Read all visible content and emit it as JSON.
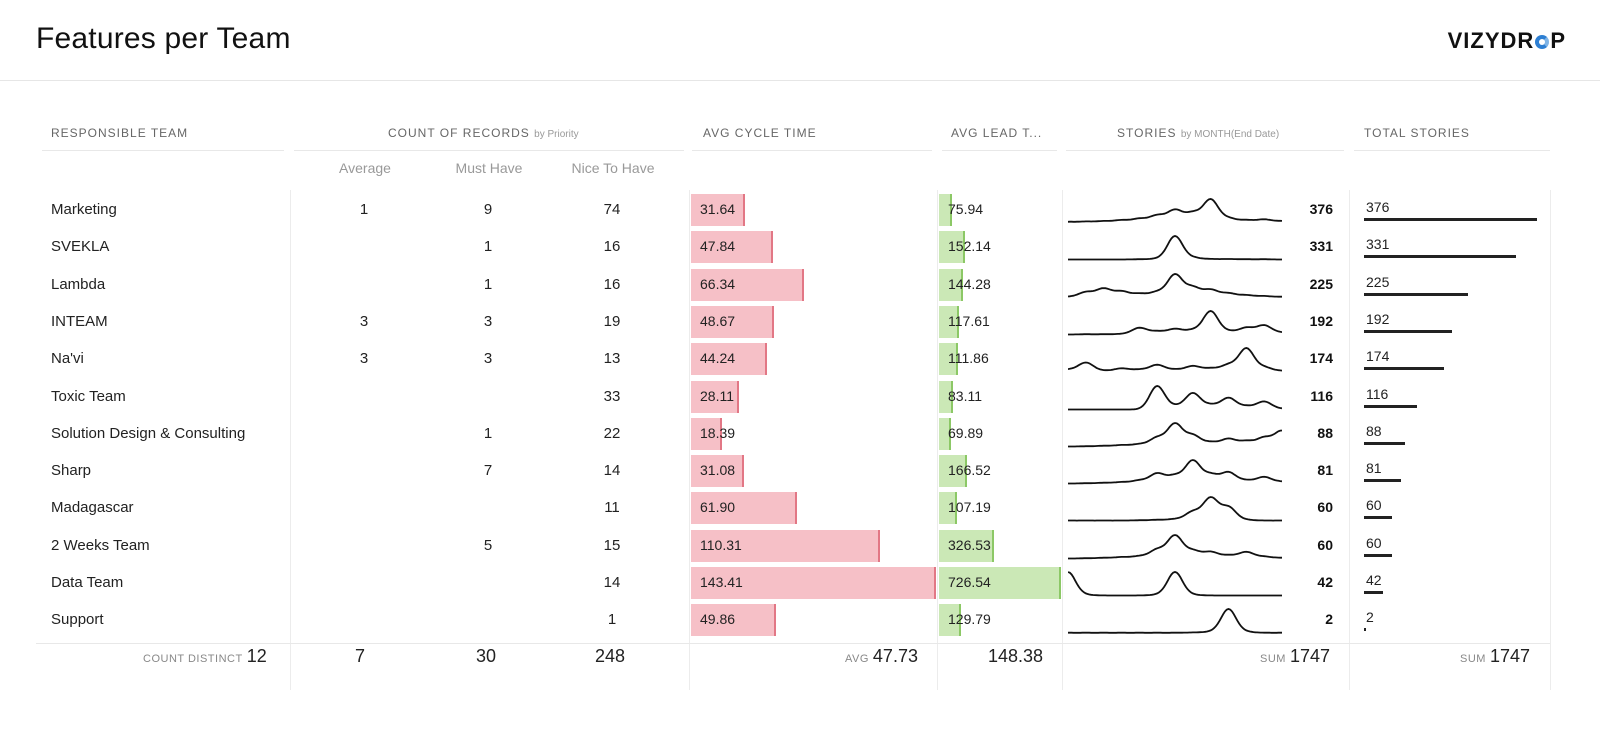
{
  "header": {
    "title": "Features per Team",
    "logo_prefix": "VIZYDR",
    "logo_suffix": "P"
  },
  "columns": {
    "team": "RESPONSIBLE TEAM",
    "count": "COUNT OF RECORDS",
    "count_sub": "by Priority",
    "cycle": "AVG CYCLE TIME",
    "lead": "AVG LEAD T...",
    "stories": "STORIES",
    "stories_sub": "by MONTH(End Date)",
    "total": "TOTAL STORIES"
  },
  "priorities": [
    "Average",
    "Must Have",
    "Nice To Have"
  ],
  "footer": {
    "team_label": "COUNT DISTINCT",
    "team_value": "12",
    "average": "7",
    "must_have": "30",
    "nice_to_have": "248",
    "cycle_label": "AVG",
    "cycle_value": "47.73",
    "lead_value": "148.38",
    "stories_label": "SUM",
    "stories_value": "1747",
    "total_label": "SUM",
    "total_value": "1747"
  },
  "chart_data": {
    "type": "table",
    "title": "Features per Team",
    "rows": [
      {
        "team": "Marketing",
        "average": "1",
        "must_have": "9",
        "nice_to_have": "74",
        "cycle": 31.64,
        "cycle_label": "31.64",
        "lead": 75.94,
        "lead_label": "75.94",
        "stories": 376,
        "stories_label": "376",
        "trend": [
          0.05,
          0.06,
          0.08,
          0.12,
          0.18,
          0.32,
          0.55,
          0.42,
          1.0,
          0.2,
          0.12,
          0.15,
          0.08
        ]
      },
      {
        "team": "SVEKLA",
        "average": "",
        "must_have": "1",
        "nice_to_have": "16",
        "cycle": 47.84,
        "cycle_label": "47.84",
        "lead": 152.14,
        "lead_label": "152.14",
        "stories": 331,
        "stories_label": "331",
        "trend": [
          0.02,
          0.02,
          0.02,
          0.02,
          0.03,
          0.05,
          1.0,
          0.1,
          0.04,
          0.04,
          0.03,
          0.03,
          0.02
        ]
      },
      {
        "team": "Lambda",
        "average": "",
        "must_have": "1",
        "nice_to_have": "16",
        "cycle": 66.34,
        "cycle_label": "66.34",
        "lead": 144.28,
        "lead_label": "144.28",
        "stories": 225,
        "stories_label": "225",
        "trend": [
          0.05,
          0.25,
          0.4,
          0.28,
          0.18,
          0.25,
          1.0,
          0.45,
          0.35,
          0.2,
          0.12,
          0.08,
          0.05
        ]
      },
      {
        "team": "INTEAM",
        "average": "3",
        "must_have": "3",
        "nice_to_have": "19",
        "cycle": 48.67,
        "cycle_label": "48.67",
        "lead": 117.61,
        "lead_label": "117.61",
        "stories": 192,
        "stories_label": "192",
        "trend": [
          0.02,
          0.03,
          0.03,
          0.04,
          0.3,
          0.15,
          0.25,
          0.2,
          1.0,
          0.15,
          0.3,
          0.4,
          0.1
        ]
      },
      {
        "team": "Na'vi",
        "average": "3",
        "must_have": "3",
        "nice_to_have": "13",
        "cycle": 44.24,
        "cycle_label": "44.24",
        "lead": 111.86,
        "lead_label": "111.86",
        "stories": 174,
        "stories_label": "174",
        "trend": [
          0.1,
          0.4,
          0.05,
          0.15,
          0.1,
          0.3,
          0.1,
          0.25,
          0.15,
          0.3,
          1.0,
          0.2,
          0.05
        ]
      },
      {
        "team": "Toxic Team",
        "average": "",
        "must_have": "",
        "nice_to_have": "33",
        "cycle": 28.11,
        "cycle_label": "28.11",
        "lead": 83.11,
        "lead_label": "83.11",
        "stories": 116,
        "stories_label": "116",
        "trend": [
          0.02,
          0.02,
          0.02,
          0.02,
          0.02,
          1.0,
          0.15,
          0.7,
          0.2,
          0.5,
          0.15,
          0.35,
          0.05
        ]
      },
      {
        "team": "Solution Design & Consulting",
        "average": "",
        "must_have": "1",
        "nice_to_have": "22",
        "cycle": 18.39,
        "cycle_label": "18.39",
        "lead": 69.89,
        "lead_label": "69.89",
        "stories": 88,
        "stories_label": "88",
        "trend": [
          0.02,
          0.03,
          0.05,
          0.08,
          0.12,
          0.4,
          1.0,
          0.5,
          0.2,
          0.35,
          0.25,
          0.4,
          0.7
        ]
      },
      {
        "team": "Sharp",
        "average": "",
        "must_have": "7",
        "nice_to_have": "14",
        "cycle": 31.08,
        "cycle_label": "31.08",
        "lead": 166.52,
        "lead_label": "166.52",
        "stories": 81,
        "stories_label": "81",
        "trend": [
          0.02,
          0.03,
          0.05,
          0.08,
          0.15,
          0.45,
          0.35,
          1.0,
          0.4,
          0.5,
          0.15,
          0.3,
          0.1
        ]
      },
      {
        "team": "Madagascar",
        "average": "",
        "must_have": "",
        "nice_to_have": "11",
        "cycle": 61.9,
        "cycle_label": "61.90",
        "lead": 107.19,
        "lead_label": "107.19",
        "stories": 60,
        "stories_label": "60",
        "trend": [
          0.02,
          0.02,
          0.02,
          0.02,
          0.03,
          0.05,
          0.08,
          0.4,
          1.0,
          0.6,
          0.05,
          0.02,
          0.02
        ]
      },
      {
        "team": "2 Weeks Team",
        "average": "",
        "must_have": "5",
        "nice_to_have": "15",
        "cycle": 110.31,
        "cycle_label": "110.31",
        "lead": 326.53,
        "lead_label": "326.53",
        "stories": 60,
        "stories_label": "60",
        "trend": [
          0.02,
          0.03,
          0.05,
          0.08,
          0.12,
          0.4,
          1.0,
          0.35,
          0.3,
          0.15,
          0.3,
          0.1,
          0.05
        ]
      },
      {
        "team": "Data Team",
        "average": "",
        "must_have": "",
        "nice_to_have": "14",
        "cycle": 143.41,
        "cycle_label": "143.41",
        "lead": 726.54,
        "lead_label": "726.54",
        "stories": 42,
        "stories_label": "42",
        "trend": [
          1.0,
          0.05,
          0.02,
          0.02,
          0.02,
          0.05,
          1.0,
          0.05,
          0.02,
          0.02,
          0.02,
          0.02,
          0.02
        ]
      },
      {
        "team": "Support",
        "average": "",
        "must_have": "",
        "nice_to_have": "1",
        "cycle": 49.86,
        "cycle_label": "49.86",
        "lead": 129.79,
        "lead_label": "129.79",
        "stories": 2,
        "stories_label": "2",
        "trend": [
          0.01,
          0.01,
          0.01,
          0.01,
          0.01,
          0.01,
          0.01,
          0.02,
          0.05,
          1.0,
          0.05,
          0.01,
          0.01
        ]
      }
    ],
    "cycle_max": 143.41,
    "lead_max": 726.54,
    "stories_max": 376
  }
}
